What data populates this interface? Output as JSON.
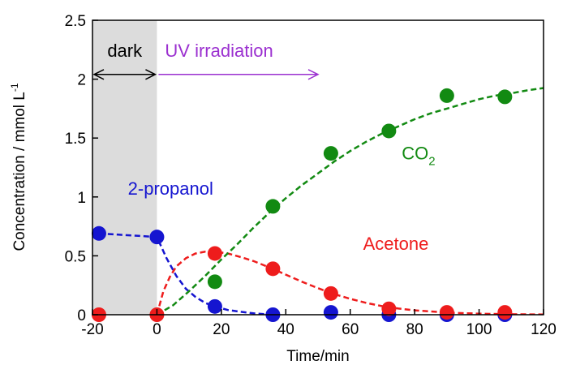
{
  "chart_data": {
    "type": "scatter",
    "xlabel": "Time/min",
    "ylabel": "Concentration / mmol L",
    "ylabel_sup": "-1",
    "xlim": [
      -20,
      120
    ],
    "ylim": [
      0,
      2.5
    ],
    "x_ticks": [
      "-20",
      "0",
      "20",
      "40",
      "60",
      "80",
      "100",
      "120"
    ],
    "y_ticks": [
      "0",
      "0.5",
      "1",
      "1.5",
      "2",
      "2.5"
    ],
    "grid": false,
    "legend": "none",
    "dark_region": {
      "from": -20,
      "to": 0,
      "color": "#dcdcdc"
    },
    "phase_labels": {
      "dark": "dark",
      "uv": "UV irradiation",
      "dark_color": "#000000",
      "uv_color": "#9b30d0",
      "uv_arrow_end_x": 50,
      "arrow_y": 2.04
    },
    "series": [
      {
        "name": "2-propanol",
        "color": "#1515d0",
        "label_x": -9,
        "label_y": 1.02,
        "points": [
          [
            -18,
            0.69
          ],
          [
            0,
            0.66
          ],
          [
            18,
            0.07
          ],
          [
            36,
            0.0
          ],
          [
            54,
            0.02
          ],
          [
            72,
            0.0
          ],
          [
            90,
            0.0
          ],
          [
            108,
            0.0
          ]
        ],
        "fit": [
          [
            -18,
            0.69
          ],
          [
            0,
            0.66
          ],
          [
            3,
            0.48
          ],
          [
            6,
            0.33
          ],
          [
            9,
            0.22
          ],
          [
            12,
            0.15
          ],
          [
            15,
            0.1
          ],
          [
            18,
            0.07
          ],
          [
            22,
            0.04
          ],
          [
            26,
            0.025
          ],
          [
            30,
            0.012
          ],
          [
            34,
            0.004
          ],
          [
            37,
            0.0
          ]
        ]
      },
      {
        "name": "Acetone",
        "color": "#ee1c1c",
        "label_x": 64,
        "label_y": 0.55,
        "points": [
          [
            -18,
            0.0
          ],
          [
            0,
            0.0
          ],
          [
            18,
            0.52
          ],
          [
            36,
            0.39
          ],
          [
            54,
            0.18
          ],
          [
            72,
            0.05
          ],
          [
            90,
            0.02
          ],
          [
            108,
            0.02
          ]
        ],
        "fit": [
          [
            0,
            0.0
          ],
          [
            2,
            0.2
          ],
          [
            4,
            0.32
          ],
          [
            6,
            0.41
          ],
          [
            9,
            0.48
          ],
          [
            12,
            0.52
          ],
          [
            15,
            0.535
          ],
          [
            18,
            0.535
          ],
          [
            22,
            0.52
          ],
          [
            26,
            0.49
          ],
          [
            30,
            0.455
          ],
          [
            35,
            0.4
          ],
          [
            40,
            0.34
          ],
          [
            45,
            0.28
          ],
          [
            50,
            0.225
          ],
          [
            55,
            0.175
          ],
          [
            60,
            0.135
          ],
          [
            65,
            0.1
          ],
          [
            70,
            0.072
          ],
          [
            75,
            0.052
          ],
          [
            80,
            0.037
          ],
          [
            90,
            0.018
          ],
          [
            100,
            0.009
          ],
          [
            110,
            0.004
          ],
          [
            120,
            0.002
          ]
        ]
      },
      {
        "name": "CO",
        "name_sub": "2",
        "color": "#128a12",
        "label_x": 76,
        "label_y": 1.32,
        "points": [
          [
            18,
            0.28
          ],
          [
            36,
            0.92
          ],
          [
            54,
            1.37
          ],
          [
            72,
            1.56
          ],
          [
            90,
            1.86
          ],
          [
            108,
            1.85
          ]
        ],
        "fit": [
          [
            0,
            0.0
          ],
          [
            5,
            0.08
          ],
          [
            10,
            0.2
          ],
          [
            15,
            0.33
          ],
          [
            20,
            0.47
          ],
          [
            25,
            0.6
          ],
          [
            30,
            0.74
          ],
          [
            35,
            0.87
          ],
          [
            40,
            0.99
          ],
          [
            45,
            1.1
          ],
          [
            50,
            1.2
          ],
          [
            55,
            1.3
          ],
          [
            60,
            1.39
          ],
          [
            65,
            1.47
          ],
          [
            70,
            1.54
          ],
          [
            75,
            1.6
          ],
          [
            80,
            1.66
          ],
          [
            85,
            1.71
          ],
          [
            90,
            1.75
          ],
          [
            95,
            1.79
          ],
          [
            100,
            1.83
          ],
          [
            105,
            1.86
          ],
          [
            110,
            1.88
          ],
          [
            115,
            1.905
          ],
          [
            120,
            1.925
          ]
        ]
      }
    ]
  }
}
